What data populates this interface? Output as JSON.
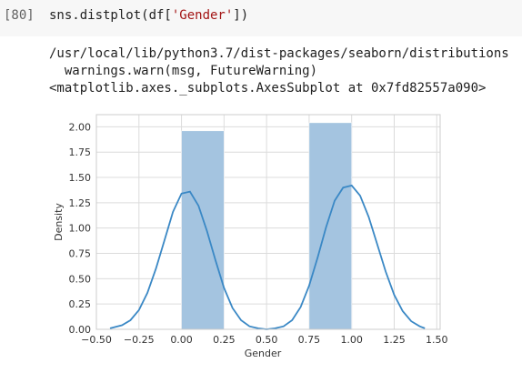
{
  "cell": {
    "prompt": "[80]",
    "code_prefix": "sns.distplot(df[",
    "code_string": "'Gender'",
    "code_suffix": "])"
  },
  "output": {
    "lines": [
      "/usr/local/lib/python3.7/dist-packages/seaborn/distributions",
      "  warnings.warn(msg, FutureWarning)",
      "<matplotlib.axes._subplots.AxesSubplot at 0x7fd82557a090>"
    ]
  },
  "chart_data": {
    "type": "bar",
    "title": "",
    "xlabel": "Gender",
    "ylabel": "Density",
    "xlim": [
      -0.5,
      1.52
    ],
    "ylim": [
      0,
      2.12
    ],
    "grid": true,
    "bars": [
      {
        "x0": 0.0,
        "x1": 0.25,
        "height": 1.96
      },
      {
        "x0": 0.75,
        "x1": 1.0,
        "height": 2.04
      }
    ],
    "kde": {
      "x": [
        -0.42,
        -0.35,
        -0.3,
        -0.25,
        -0.2,
        -0.15,
        -0.1,
        -0.05,
        0.0,
        0.05,
        0.1,
        0.15,
        0.2,
        0.25,
        0.3,
        0.35,
        0.4,
        0.45,
        0.5,
        0.55,
        0.6,
        0.65,
        0.7,
        0.75,
        0.8,
        0.85,
        0.9,
        0.95,
        1.0,
        1.05,
        1.1,
        1.15,
        1.2,
        1.25,
        1.3,
        1.35,
        1.4,
        1.43
      ],
      "y": [
        0.01,
        0.04,
        0.09,
        0.19,
        0.36,
        0.6,
        0.88,
        1.16,
        1.34,
        1.36,
        1.22,
        0.97,
        0.68,
        0.41,
        0.21,
        0.09,
        0.03,
        0.01,
        0.0,
        0.01,
        0.03,
        0.09,
        0.22,
        0.43,
        0.71,
        1.01,
        1.27,
        1.4,
        1.42,
        1.32,
        1.11,
        0.84,
        0.57,
        0.34,
        0.18,
        0.08,
        0.03,
        0.01
      ]
    },
    "xticks": [
      -0.5,
      -0.25,
      0.0,
      0.25,
      0.5,
      0.75,
      1.0,
      1.25,
      1.5
    ],
    "xtick_labels": [
      "−0.50",
      "−0.25",
      "0.00",
      "0.25",
      "0.50",
      "0.75",
      "1.00",
      "1.25",
      "1.50"
    ],
    "yticks": [
      0,
      0.25,
      0.5,
      0.75,
      1.0,
      1.25,
      1.5,
      1.75,
      2.0
    ],
    "ytick_labels": [
      "0.00",
      "0.25",
      "0.50",
      "0.75",
      "1.00",
      "1.25",
      "1.50",
      "1.75",
      "2.00"
    ],
    "colors": {
      "bar": "#a4c4e0",
      "line": "#3a88c5",
      "grid": "#dcdcdc"
    }
  }
}
